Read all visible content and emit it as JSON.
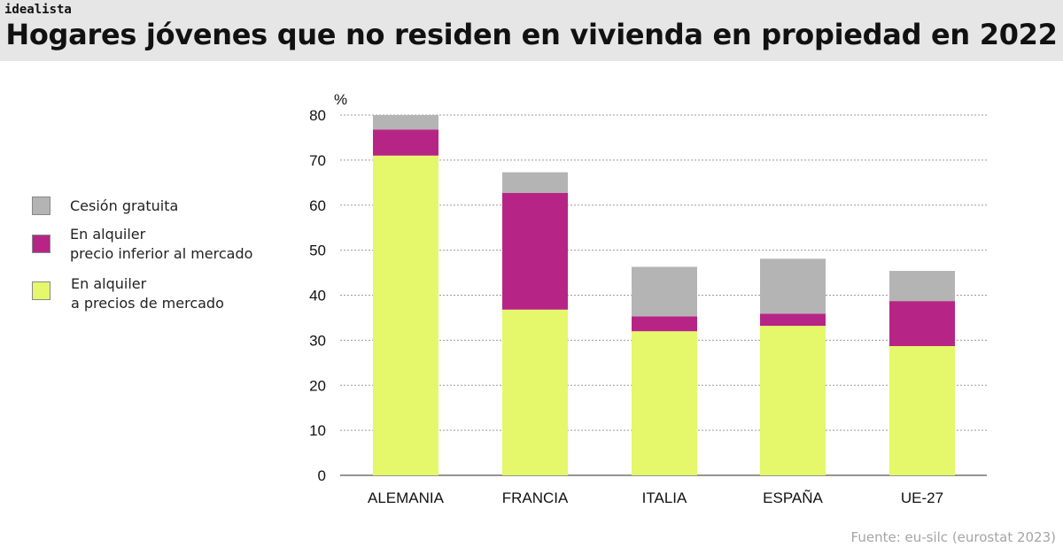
{
  "brand": "idealista",
  "title": "Hogares jóvenes que no residen en vivienda en propiedad en 2022",
  "source": "Fuente: eu-silc (eurostat 2023)",
  "legend": {
    "cesion": "Cesión gratuita",
    "inferior_line1": "En alquiler",
    "inferior_line2": "precio inferior al mercado",
    "mercado_line1": "En alquiler",
    "mercado_line2": "a precios de mercado"
  },
  "chart_data": {
    "type": "bar",
    "stacked": true,
    "title": "Hogares jóvenes que no residen en vivienda en propiedad en 2022",
    "ylabel": "%",
    "xlabel": "",
    "ylim": [
      0,
      80
    ],
    "yticks": [
      0,
      10,
      20,
      30,
      40,
      50,
      60,
      70,
      80
    ],
    "grid": true,
    "legend_position": "left",
    "categories": [
      "ALEMANIA",
      "FRANCIA",
      "ITALIA",
      "ESPAÑA",
      "UE-27"
    ],
    "series": [
      {
        "name": "En alquiler a precios de mercado",
        "color": "#e5f76a",
        "values": [
          71.0,
          36.8,
          32.0,
          33.2,
          28.7
        ]
      },
      {
        "name": "En alquiler precio inferior al mercado",
        "color": "#b62585",
        "values": [
          5.8,
          25.9,
          3.3,
          2.7,
          10.0
        ]
      },
      {
        "name": "Cesión gratuita",
        "color": "#b4b4b4",
        "values": [
          3.2,
          4.6,
          11.0,
          12.2,
          6.7
        ]
      }
    ]
  }
}
